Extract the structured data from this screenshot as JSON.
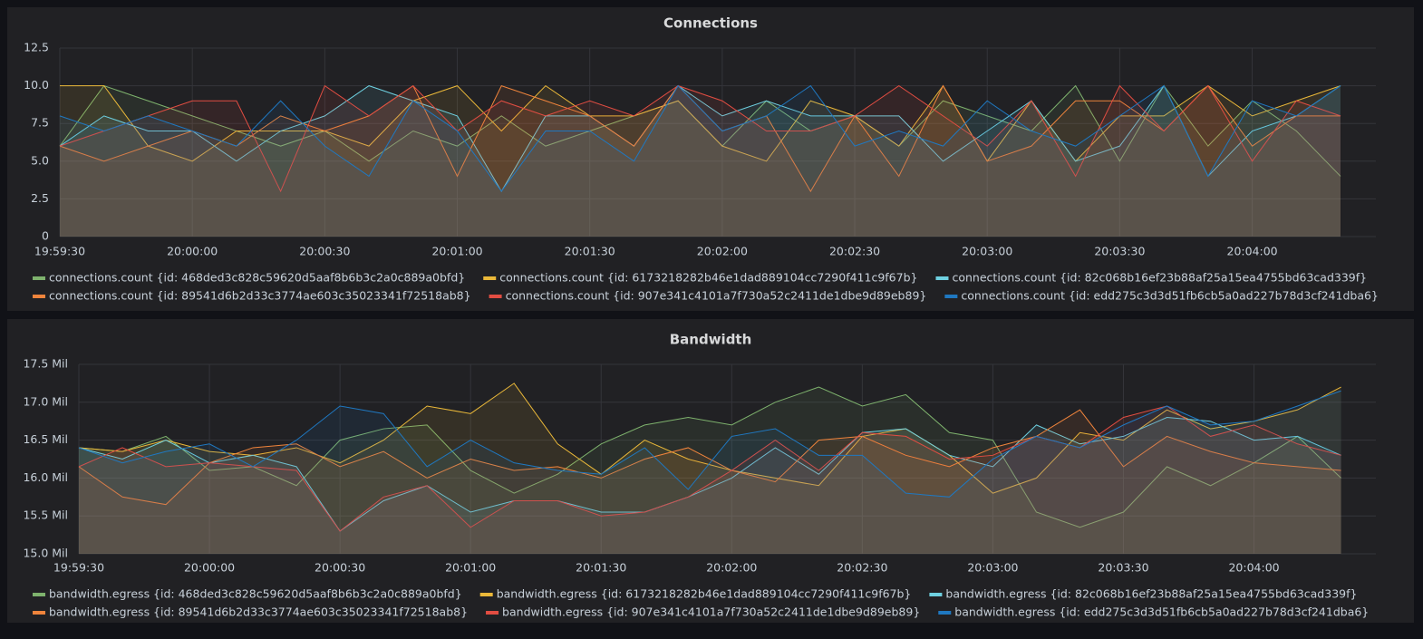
{
  "chart_data": [
    {
      "type": "line",
      "title": "Connections",
      "x": [
        "19:59:30",
        "19:59:40",
        "19:59:50",
        "20:00:00",
        "20:00:10",
        "20:00:20",
        "20:00:30",
        "20:00:40",
        "20:00:50",
        "20:01:00",
        "20:01:10",
        "20:01:20",
        "20:01:30",
        "20:01:40",
        "20:01:50",
        "20:02:00",
        "20:02:10",
        "20:02:20",
        "20:02:30",
        "20:02:40",
        "20:02:50",
        "20:03:00",
        "20:03:10",
        "20:03:20",
        "20:03:30",
        "20:03:40",
        "20:03:50",
        "20:04:00",
        "20:04:10",
        "20:04:20"
      ],
      "xlim": [
        "19:59:30",
        "20:04:28"
      ],
      "xticks": [
        "19:59:30",
        "20:00:00",
        "20:00:30",
        "20:01:00",
        "20:01:30",
        "20:02:00",
        "20:02:30",
        "20:03:00",
        "20:03:30",
        "20:04:00"
      ],
      "ylim": [
        0,
        12.5
      ],
      "yticks": [
        0,
        2.5,
        {
          "value": 5,
          "label": "5.0"
        },
        7.5,
        {
          "value": 10,
          "label": "10.0"
        },
        12.5
      ],
      "grid": true,
      "series": [
        {
          "name": "connections.count {id: 468ded3c828c59620d5aaf8b6b3c2a0c889a0bfd}",
          "color": "#7eb26d",
          "values": [
            6,
            10,
            9,
            8,
            7,
            6,
            7,
            5,
            7,
            6,
            8,
            6,
            7,
            8,
            9,
            6,
            9,
            7,
            8,
            6,
            9,
            8,
            7,
            10,
            5,
            10,
            6,
            9,
            7,
            4
          ]
        },
        {
          "name": "connections.count {id: 6173218282b46e1dad889104cc7290f411c9f67b}",
          "color": "#eab839",
          "values": [
            10,
            10,
            6,
            5,
            7,
            7,
            7,
            6,
            9,
            10,
            7,
            10,
            8,
            8,
            9,
            6,
            5,
            9,
            8,
            6,
            10,
            5,
            9,
            5,
            8,
            8,
            10,
            8,
            9,
            10
          ]
        },
        {
          "name": "connections.count {id: 82c068b16ef23b88af25a15ea4755bd63cad339f}",
          "color": "#6ed0e0",
          "values": [
            6,
            8,
            7,
            7,
            5,
            7,
            8,
            10,
            9,
            8,
            3,
            8,
            8,
            6,
            10,
            8,
            9,
            8,
            8,
            8,
            5,
            7,
            9,
            5,
            6,
            10,
            4,
            7,
            8,
            10
          ]
        },
        {
          "name": "connections.count {id: 89541d6b2d33c3774ae603c35023341f72518ab8}",
          "color": "#ef843c",
          "values": [
            6,
            5,
            6,
            7,
            6,
            8,
            7,
            8,
            10,
            4,
            10,
            9,
            8,
            6,
            10,
            7,
            8,
            3,
            8,
            4,
            10,
            5,
            6,
            9,
            9,
            7,
            10,
            6,
            8,
            8
          ]
        },
        {
          "name": "connections.count {id: 907e341c4101a7f730a52c2411de1dbe9d89eb89}",
          "color": "#e24d42",
          "values": [
            6,
            7,
            8,
            9,
            9,
            3,
            10,
            8,
            10,
            7,
            9,
            8,
            9,
            8,
            10,
            9,
            7,
            7,
            8,
            10,
            8,
            6,
            9,
            4,
            10,
            7,
            10,
            5,
            9,
            8
          ]
        },
        {
          "name": "connections.count {id: edd275c3d3d51fb6cb5a0ad227b78d3cf241dba6}",
          "color": "#1f78c1",
          "values": [
            8,
            7,
            8,
            7,
            6,
            9,
            6,
            4,
            9,
            7,
            3,
            7,
            7,
            5,
            10,
            7,
            8,
            10,
            6,
            7,
            6,
            9,
            7,
            6,
            8,
            10,
            4,
            9,
            8,
            10
          ]
        }
      ]
    },
    {
      "type": "line",
      "title": "Bandwidth",
      "x": [
        "19:59:30",
        "19:59:40",
        "19:59:50",
        "20:00:00",
        "20:00:10",
        "20:00:20",
        "20:00:30",
        "20:00:40",
        "20:00:50",
        "20:01:00",
        "20:01:10",
        "20:01:20",
        "20:01:30",
        "20:01:40",
        "20:01:50",
        "20:02:00",
        "20:02:10",
        "20:02:20",
        "20:02:30",
        "20:02:40",
        "20:02:50",
        "20:03:00",
        "20:03:10",
        "20:03:20",
        "20:03:30",
        "20:03:40",
        "20:03:50",
        "20:04:00",
        "20:04:10",
        "20:04:20"
      ],
      "xlim": [
        "19:59:30",
        "20:04:28"
      ],
      "xticks": [
        "19:59:30",
        "20:00:00",
        "20:00:30",
        "20:01:00",
        "20:01:30",
        "20:02:00",
        "20:02:30",
        "20:03:00",
        "20:03:30",
        "20:04:00"
      ],
      "ylim": [
        15,
        17.5
      ],
      "yticks": [
        {
          "value": 15,
          "label": "15.0 Mil"
        },
        {
          "value": 15.5,
          "label": "15.5 Mil"
        },
        {
          "value": 16,
          "label": "16.0 Mil"
        },
        {
          "value": 16.5,
          "label": "16.5 Mil"
        },
        {
          "value": 17,
          "label": "17.0 Mil"
        },
        {
          "value": 17.5,
          "label": "17.5 Mil"
        }
      ],
      "grid": true,
      "series": [
        {
          "name": "bandwidth.egress {id: 468ded3c828c59620d5aaf8b6b3c2a0c889a0bfd}",
          "color": "#7eb26d",
          "values": [
            16.4,
            16.35,
            16.55,
            16.1,
            16.15,
            15.9,
            16.5,
            16.65,
            16.7,
            16.1,
            15.8,
            16.05,
            16.45,
            16.7,
            16.8,
            16.7,
            17.0,
            17.2,
            16.95,
            17.1,
            16.6,
            16.5,
            15.55,
            15.35,
            15.55,
            16.15,
            15.9,
            16.2,
            16.55,
            16.0
          ]
        },
        {
          "name": "bandwidth.egress {id: 6173218282b46e1dad889104cc7290f411c9f67b}",
          "color": "#eab839",
          "values": [
            16.4,
            16.35,
            16.5,
            16.35,
            16.3,
            16.4,
            16.2,
            16.5,
            16.95,
            16.85,
            17.25,
            16.45,
            16.05,
            16.5,
            16.25,
            16.1,
            16.0,
            15.9,
            16.55,
            16.65,
            16.3,
            15.8,
            16.0,
            16.6,
            16.5,
            16.9,
            16.65,
            16.75,
            16.9,
            17.2
          ]
        },
        {
          "name": "bandwidth.egress {id: 82c068b16ef23b88af25a15ea4755bd63cad339f}",
          "color": "#6ed0e0",
          "values": [
            16.4,
            16.25,
            16.5,
            16.2,
            16.3,
            16.15,
            15.3,
            15.7,
            15.9,
            15.55,
            15.7,
            15.7,
            15.55,
            15.55,
            15.75,
            16.0,
            16.4,
            16.05,
            16.6,
            16.65,
            16.3,
            16.15,
            16.7,
            16.45,
            16.55,
            16.8,
            16.75,
            16.5,
            16.55,
            16.3
          ]
        },
        {
          "name": "bandwidth.egress {id: 89541d6b2d33c3774ae603c35023341f72518ab8}",
          "color": "#ef843c",
          "values": [
            16.15,
            15.75,
            15.65,
            16.2,
            16.4,
            16.45,
            16.15,
            16.35,
            16.0,
            16.25,
            16.1,
            16.15,
            16.0,
            16.25,
            16.4,
            16.1,
            15.95,
            16.5,
            16.55,
            16.3,
            16.15,
            16.4,
            16.55,
            16.9,
            16.15,
            16.55,
            16.35,
            16.2,
            16.15,
            16.1
          ]
        },
        {
          "name": "bandwidth.egress {id: 907e341c4101a7f730a52c2411de1dbe9d89eb89}",
          "color": "#e24d42",
          "values": [
            16.15,
            16.4,
            16.15,
            16.2,
            16.15,
            16.1,
            15.3,
            15.75,
            15.9,
            15.35,
            15.7,
            15.7,
            15.5,
            15.55,
            15.75,
            16.1,
            16.5,
            16.1,
            16.6,
            16.55,
            16.25,
            16.3,
            16.55,
            16.4,
            16.8,
            16.95,
            16.55,
            16.7,
            16.45,
            16.3
          ]
        },
        {
          "name": "bandwidth.egress {id: edd275c3d3d51fb6cb5a0ad227b78d3cf241dba6}",
          "color": "#1f78c1",
          "values": [
            16.4,
            16.2,
            16.35,
            16.45,
            16.15,
            16.5,
            16.95,
            16.85,
            16.15,
            16.5,
            16.2,
            16.1,
            16.05,
            16.4,
            15.85,
            16.55,
            16.65,
            16.3,
            16.3,
            15.8,
            15.75,
            16.25,
            16.55,
            16.4,
            16.7,
            16.95,
            16.7,
            16.75,
            16.95,
            17.15
          ]
        }
      ]
    }
  ]
}
